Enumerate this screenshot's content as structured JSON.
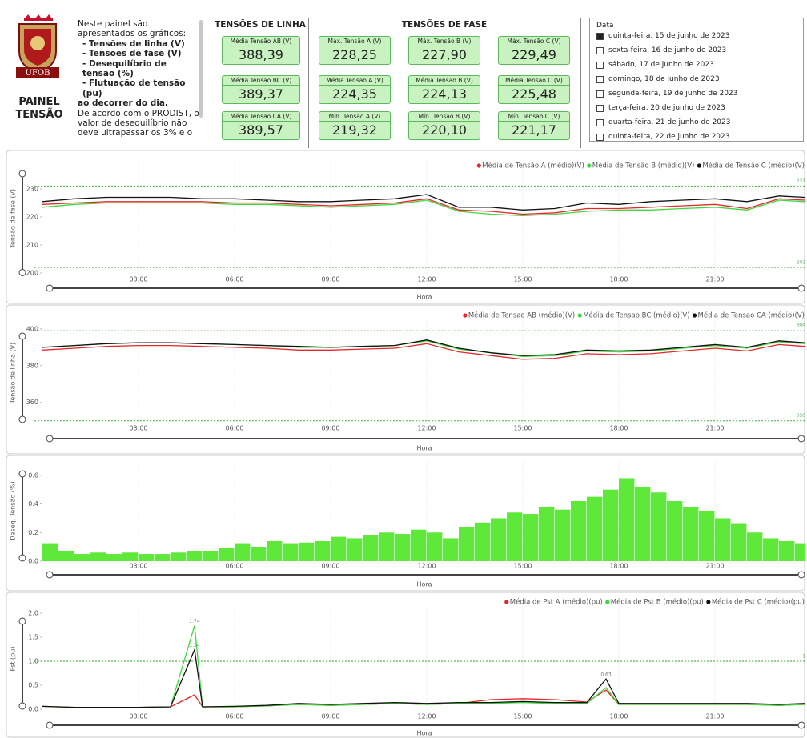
{
  "logo": {
    "text": "UFOB"
  },
  "title": "PAINEL TENSÃO",
  "description": {
    "intro": "Neste painel são apresentados os gráficos:",
    "items": [
      "- Tensões de linha (V)",
      "- Tensões de fase (V)",
      "- Desequilíbrio de tensão (%)",
      "- Flutuação de tensão (pu)"
    ],
    "outro": "ao decorrer do dia.",
    "note": "De acordo com o PRODIST, o valor de desequilíbrio não deve ultrapassar os 3% e o"
  },
  "line_voltages": {
    "title": "TENSÕES DE LINHA",
    "cards": [
      {
        "label": "Média Tensão AB (V)",
        "value": "388,39"
      },
      {
        "label": "Média Tensão BC (V)",
        "value": "389,37"
      },
      {
        "label": "Média Tensão CA (V)",
        "value": "389,57"
      }
    ]
  },
  "phase_voltages": {
    "title": "TENSÕES DE FASE",
    "cards": [
      {
        "label": "Máx. Tensão A (V)",
        "value": "228,25"
      },
      {
        "label": "Máx. Tensão B (V)",
        "value": "227,90"
      },
      {
        "label": "Máx. Tensão C (V)",
        "value": "229,49"
      },
      {
        "label": "Média Tensão A (V)",
        "value": "224,35"
      },
      {
        "label": "Média Tensão B (V)",
        "value": "224,13"
      },
      {
        "label": "Média Tensão C (V)",
        "value": "225,48"
      },
      {
        "label": "Mín. Tensão A (V)",
        "value": "219,32"
      },
      {
        "label": "Mín. Tensão B (V)",
        "value": "220,10"
      },
      {
        "label": "Mín. Tensão C (V)",
        "value": "221,17"
      }
    ]
  },
  "date_filter": {
    "title": "Data",
    "options": [
      {
        "label": "quinta-feira, 15 de junho de 2023",
        "selected": true
      },
      {
        "label": "sexta-feira, 16 de junho de 2023",
        "selected": false
      },
      {
        "label": "sábado, 17 de junho de 2023",
        "selected": false
      },
      {
        "label": "domingo, 18 de junho de 2023",
        "selected": false
      },
      {
        "label": "segunda-feira, 19 de junho de 2023",
        "selected": false
      },
      {
        "label": "terça-feira, 20 de junho de 2023",
        "selected": false
      },
      {
        "label": "quarta-feira, 21 de junho de 2023",
        "selected": false
      },
      {
        "label": "quinta-feira, 22 de junho de 2023",
        "selected": false
      }
    ]
  },
  "chart_data": [
    {
      "type": "line",
      "y_label": "Tensão de fase (V)",
      "x_label": "Hora",
      "xlim": [
        0,
        23.85
      ],
      "xticks": [
        {
          "value": 3,
          "label": "03:00"
        },
        {
          "value": 6,
          "label": "06:00"
        },
        {
          "value": 9,
          "label": "09:00"
        },
        {
          "value": 12,
          "label": "12:00"
        },
        {
          "value": 15,
          "label": "15:00"
        },
        {
          "value": 18,
          "label": "18:00"
        },
        {
          "value": 21,
          "label": "21:00"
        }
      ],
      "ylim": [
        199,
        240
      ],
      "yticks": [
        200,
        210,
        220,
        230
      ],
      "reference_lines": [
        {
          "value": 231,
          "label": "231"
        },
        {
          "value": 202,
          "label": "202"
        }
      ],
      "x": [
        0,
        1,
        2,
        3,
        4,
        5,
        6,
        7,
        8,
        9,
        10,
        11,
        12,
        13,
        14,
        15,
        16,
        17,
        18,
        19,
        20,
        21,
        22,
        23,
        23.8
      ],
      "series": [
        {
          "name": "Média de Tensão A (médio)(V)",
          "color": "#e8262b",
          "values": [
            224.5,
            225,
            225.5,
            225.5,
            225.5,
            225.5,
            225,
            225,
            224.5,
            224,
            224.5,
            225,
            226.5,
            222.5,
            222,
            221,
            221.5,
            223,
            223,
            223.5,
            224,
            224.5,
            223,
            226.5,
            226
          ]
        },
        {
          "name": "Média de Tensão B (médio)(V)",
          "color": "#3ed83e",
          "values": [
            223.5,
            224.5,
            225,
            225,
            225,
            225,
            224.5,
            224.5,
            224,
            223.5,
            224,
            224.5,
            226,
            222,
            221,
            220.5,
            221,
            222,
            222.5,
            222.5,
            223,
            223.5,
            222.5,
            226,
            225.5
          ]
        },
        {
          "name": "Média de Tensão C (médio)(V)",
          "color": "#111111",
          "values": [
            225.5,
            226.5,
            227,
            227,
            227,
            226.5,
            226.5,
            226,
            225.5,
            225.5,
            226,
            226.5,
            228,
            223.5,
            223.5,
            222.5,
            223,
            225,
            224.5,
            225.5,
            226,
            226.5,
            225.5,
            227.5,
            227
          ]
        }
      ]
    },
    {
      "type": "line",
      "y_label": "Tensão de linha (V)",
      "x_label": "Hora",
      "xlim": [
        0,
        23.85
      ],
      "xticks": [
        {
          "value": 3,
          "label": "03:00"
        },
        {
          "value": 6,
          "label": "06:00"
        },
        {
          "value": 9,
          "label": "09:00"
        },
        {
          "value": 12,
          "label": "12:00"
        },
        {
          "value": 15,
          "label": "15:00"
        },
        {
          "value": 18,
          "label": "18:00"
        },
        {
          "value": 21,
          "label": "21:00"
        }
      ],
      "ylim": [
        349,
        403
      ],
      "yticks": [
        360,
        380,
        400
      ],
      "reference_lines": [
        {
          "value": 399,
          "label": "399"
        },
        {
          "value": 350,
          "label": "350"
        }
      ],
      "x": [
        0,
        1,
        2,
        3,
        4,
        5,
        6,
        7,
        8,
        9,
        10,
        11,
        12,
        13,
        14,
        15,
        16,
        17,
        18,
        19,
        20,
        21,
        22,
        23,
        23.8
      ],
      "series": [
        {
          "name": "Média de Tensao AB (médio)(V)",
          "color": "#e8262b",
          "values": [
            388.5,
            389.5,
            390.5,
            391,
            391,
            390.5,
            390,
            389.5,
            388.5,
            388.5,
            389,
            389.5,
            392,
            387.5,
            385.5,
            383.5,
            384,
            386.5,
            386,
            386.5,
            388,
            389.5,
            388,
            391.5,
            390.5
          ]
        },
        {
          "name": "Média de Tensao BC (médio)(V)",
          "color": "#3ed83e",
          "values": [
            390,
            391,
            392,
            392.5,
            392.5,
            392,
            391.5,
            391,
            390,
            390,
            390.5,
            391,
            393.5,
            389,
            387,
            385,
            385.5,
            388,
            387.5,
            388,
            389.5,
            391,
            389.5,
            393,
            392
          ]
        },
        {
          "name": "Média de Tensao CA (médio)(V)",
          "color": "#111111",
          "values": [
            390,
            391,
            392,
            392.5,
            392.5,
            392,
            391.5,
            391,
            390.5,
            390,
            390.5,
            391,
            394,
            389.5,
            387,
            385.5,
            386,
            388.5,
            388,
            388.5,
            390,
            391.5,
            390,
            393.5,
            392.5
          ]
        }
      ]
    },
    {
      "type": "bar",
      "y_label": "Deseq. Tensão (%)",
      "x_label": "Hora",
      "color": "#5ee83a",
      "xlim": [
        0,
        23.85
      ],
      "xticks": [
        {
          "value": 3,
          "label": "03:00"
        },
        {
          "value": 6,
          "label": "06:00"
        },
        {
          "value": 9,
          "label": "09:00"
        },
        {
          "value": 12,
          "label": "12:00"
        },
        {
          "value": 15,
          "label": "15:00"
        },
        {
          "value": 18,
          "label": "18:00"
        },
        {
          "value": 21,
          "label": "21:00"
        }
      ],
      "ylim": [
        0,
        0.7
      ],
      "yticks": [
        {
          "value": 0,
          "label": "0.0"
        },
        0.2,
        0.4,
        0.6
      ],
      "bar_width": 0.5,
      "x": [
        0,
        0.5,
        1,
        1.5,
        2,
        2.5,
        3,
        3.5,
        4,
        4.5,
        5,
        5.5,
        6,
        6.5,
        7,
        7.5,
        8,
        8.5,
        9,
        9.5,
        10,
        10.5,
        11,
        11.5,
        12,
        12.5,
        13,
        13.5,
        14,
        14.5,
        15,
        15.5,
        16,
        16.5,
        17,
        17.5,
        18,
        18.5,
        19,
        19.5,
        20,
        20.5,
        21,
        21.5,
        22,
        22.5,
        23,
        23.5
      ],
      "values": [
        0.12,
        0.07,
        0.05,
        0.06,
        0.05,
        0.06,
        0.05,
        0.05,
        0.06,
        0.07,
        0.07,
        0.09,
        0.12,
        0.1,
        0.14,
        0.12,
        0.13,
        0.14,
        0.17,
        0.16,
        0.18,
        0.2,
        0.19,
        0.22,
        0.2,
        0.16,
        0.24,
        0.27,
        0.3,
        0.34,
        0.33,
        0.38,
        0.36,
        0.42,
        0.45,
        0.5,
        0.58,
        0.52,
        0.48,
        0.42,
        0.38,
        0.35,
        0.3,
        0.26,
        0.2,
        0.16,
        0.14,
        0.12
      ]
    },
    {
      "type": "line",
      "y_label": "Pst (pu)",
      "x_label": "Hora",
      "xlim": [
        0,
        23.85
      ],
      "xticks": [
        {
          "value": 3,
          "label": "03:00"
        },
        {
          "value": 6,
          "label": "06:00"
        },
        {
          "value": 9,
          "label": "09:00"
        },
        {
          "value": 12,
          "label": "12:00"
        },
        {
          "value": 15,
          "label": "15:00"
        },
        {
          "value": 18,
          "label": "18:00"
        },
        {
          "value": 21,
          "label": "21:00"
        }
      ],
      "ylim": [
        0,
        2.1
      ],
      "yticks": [
        {
          "value": 0,
          "label": "0.0"
        },
        0.5,
        {
          "value": 1,
          "label": "1.0"
        },
        1.5,
        {
          "value": 2,
          "label": "2.0"
        }
      ],
      "reference_lines": [
        {
          "value": 1,
          "label": "1"
        }
      ],
      "x": [
        0,
        1,
        2,
        3,
        4,
        4.75,
        5,
        6,
        7,
        8,
        9,
        10,
        11,
        12,
        13,
        14,
        15,
        16,
        17,
        17.6,
        18,
        19,
        20,
        21,
        22,
        23,
        23.8
      ],
      "series": [
        {
          "name": "Média de Pst A (médio)(pu)",
          "color": "#e8262b",
          "values": [
            0.06,
            0.04,
            0.04,
            0.04,
            0.05,
            0.3,
            0.05,
            0.05,
            0.07,
            0.1,
            0.08,
            0.1,
            0.12,
            0.1,
            0.12,
            0.2,
            0.22,
            0.2,
            0.15,
            0.4,
            0.1,
            0.1,
            0.1,
            0.1,
            0.1,
            0.08,
            0.1
          ]
        },
        {
          "name": "Média de Pst B (médio)(pu)",
          "color": "#3ed83e",
          "values": [
            0.06,
            0.04,
            0.04,
            0.04,
            0.05,
            1.74,
            0.05,
            0.05,
            0.07,
            0.1,
            0.08,
            0.1,
            0.12,
            0.1,
            0.12,
            0.12,
            0.14,
            0.12,
            0.12,
            0.45,
            0.1,
            0.1,
            0.1,
            0.1,
            0.1,
            0.08,
            0.1
          ],
          "value_labels": [
            null,
            null,
            null,
            null,
            null,
            "1.74",
            null,
            null,
            null,
            null,
            null,
            null,
            null,
            null,
            null,
            null,
            null,
            null,
            null,
            null,
            null,
            null,
            null,
            null,
            null,
            null,
            null
          ]
        },
        {
          "name": "Média de Pst C (médio)(pu)",
          "color": "#111111",
          "values": [
            0.06,
            0.04,
            0.04,
            0.04,
            0.05,
            1.24,
            0.05,
            0.06,
            0.08,
            0.12,
            0.1,
            0.12,
            0.14,
            0.12,
            0.14,
            0.14,
            0.16,
            0.14,
            0.14,
            0.63,
            0.12,
            0.12,
            0.12,
            0.12,
            0.12,
            0.1,
            0.12
          ],
          "value_labels": [
            null,
            null,
            null,
            null,
            null,
            "1.24",
            null,
            null,
            null,
            null,
            null,
            null,
            null,
            null,
            null,
            null,
            null,
            null,
            null,
            "0.63",
            null,
            null,
            null,
            null,
            null,
            null,
            null
          ]
        }
      ]
    }
  ]
}
